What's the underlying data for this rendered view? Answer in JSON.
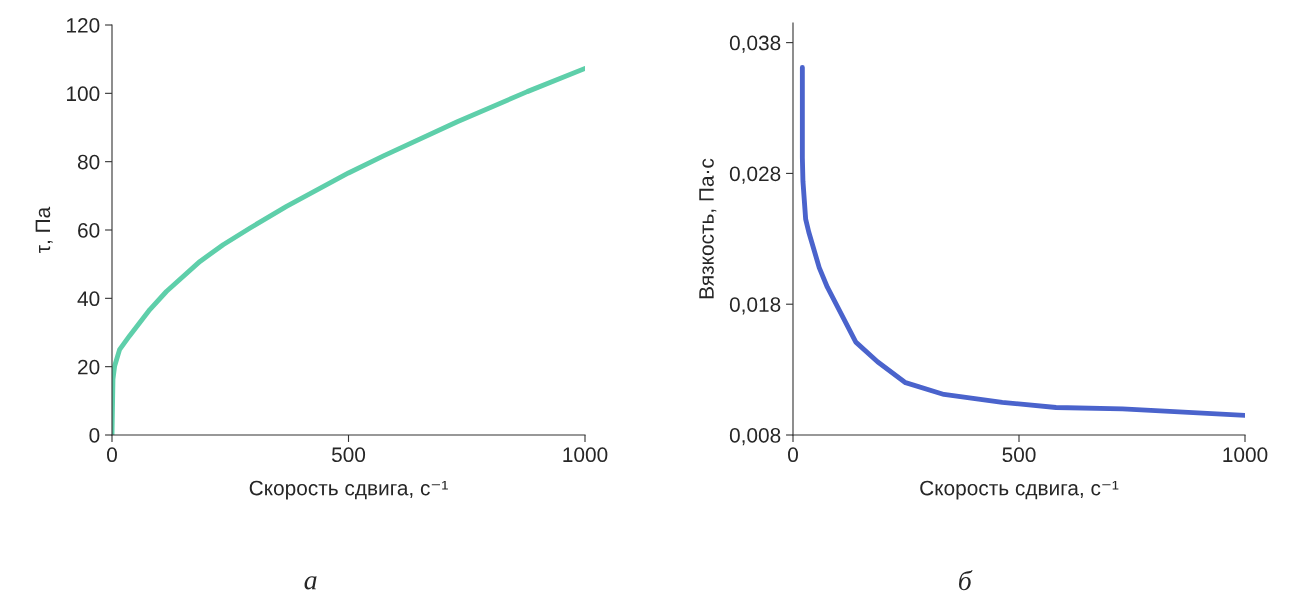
{
  "chart_data": [
    {
      "type": "line",
      "xlabel": "Скорость сдвига, с⁻¹",
      "ylabel": "τ, Па",
      "annotations": [
        "а"
      ],
      "series": [
        {
          "color": "#5ecfaa",
          "x": [
            0,
            2,
            5.6,
            16,
            37,
            80,
            115,
            186,
            235,
            292,
            369,
            500,
            574,
            730,
            878,
            1000
          ],
          "values": [
            0,
            16.3,
            20.2,
            25,
            29,
            36.7,
            42,
            50.8,
            55.7,
            60.6,
            66.9,
            76.7,
            81.7,
            91.7,
            100.5,
            107.3
          ]
        }
      ],
      "xlim": [
        0,
        1000
      ],
      "xticks": [
        0,
        500,
        1000
      ],
      "ylim": [
        0,
        120
      ],
      "yticks": [
        0,
        20,
        40,
        60,
        80,
        100,
        120
      ],
      "grid": false,
      "legend": false
    },
    {
      "type": "line",
      "xlabel": "Скорость сдвига, с⁻¹",
      "ylabel": "Вязкость, Па·с",
      "annotations": [
        "б"
      ],
      "series": [
        {
          "color": "#4a63cc",
          "x": [
            20.7,
            20.7,
            22,
            28,
            35,
            58,
            76,
            139,
            187,
            249,
            334,
            463,
            582,
            729,
            1000
          ],
          "values": [
            0.0361,
            0.0292,
            0.0274,
            0.0245,
            0.0235,
            0.0208,
            0.0193,
            0.0151,
            0.0136,
            0.012,
            0.0111,
            0.0105,
            0.0101,
            0.01,
            0.0095
          ]
        }
      ],
      "xlim": [
        0,
        1000
      ],
      "xticks": [
        0,
        500,
        1000
      ],
      "ylim": [
        0.008,
        0.0395
      ],
      "yticks": [
        {
          "value": 0.008,
          "label": "0,008"
        },
        {
          "value": 0.018,
          "label": "0,018"
        },
        {
          "value": 0.028,
          "label": "0,028"
        },
        {
          "value": 0.038,
          "label": "0,038"
        }
      ],
      "grid": false,
      "legend": false
    }
  ]
}
